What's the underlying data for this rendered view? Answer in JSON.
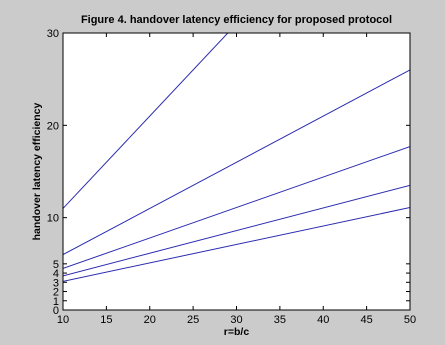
{
  "chart_data": {
    "type": "line",
    "title": "Figure 4. handover latency efficiency for proposed protocol",
    "xlabel": "r=b/c",
    "ylabel": "handover latency efficiency",
    "xlim": [
      10,
      50
    ],
    "ylim": [
      0,
      30
    ],
    "xticks": [
      10,
      15,
      20,
      25,
      30,
      35,
      40,
      45,
      50
    ],
    "yticks": [
      0,
      1,
      2,
      3,
      4,
      5,
      10,
      20,
      30
    ],
    "grid": false,
    "legend": "none",
    "line_color": "#2b2bb0",
    "series": [
      {
        "x": [
          10,
          30
        ],
        "y": [
          11,
          31
        ]
      },
      {
        "x": [
          10,
          50
        ],
        "y": [
          6,
          26
        ]
      },
      {
        "x": [
          10,
          50
        ],
        "y": [
          4.5,
          17.7
        ]
      },
      {
        "x": [
          10,
          50
        ],
        "y": [
          3.7,
          13.5
        ]
      },
      {
        "x": [
          10,
          50
        ],
        "y": [
          3.1,
          11.1
        ]
      }
    ]
  }
}
